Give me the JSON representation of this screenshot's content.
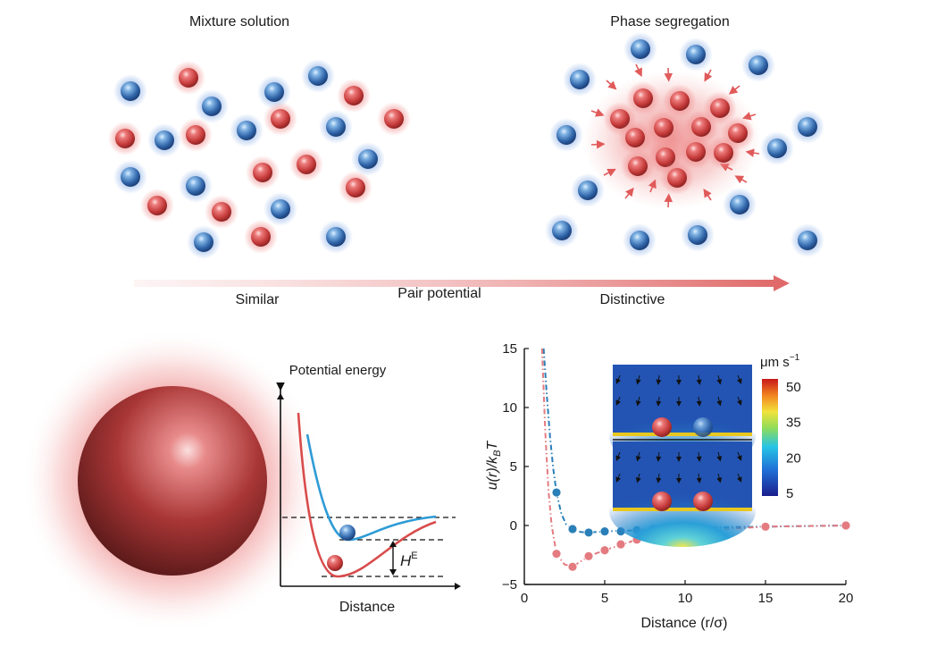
{
  "top": {
    "left_title": "Mixture solution",
    "right_title": "Phase segregation",
    "arrow_left_label": "Similar",
    "arrow_center_label": "Pair potential",
    "arrow_right_label": "Distinctive"
  },
  "energy_diagram": {
    "y_label": "Potential energy",
    "x_label": "Distance",
    "gap_label": "H",
    "gap_label_sup": "E"
  },
  "chart_data": {
    "type": "line",
    "xlabel": "Distance (r/σ)",
    "ylabel_parts": {
      "main": "u(r)/k",
      "sub": "B",
      "tail": "T"
    },
    "xlim": [
      0,
      20
    ],
    "ylim": [
      -5,
      15
    ],
    "xticks": [
      0,
      5,
      10,
      15,
      20
    ],
    "yticks": [
      -5,
      0,
      5,
      10,
      15
    ],
    "series": [
      {
        "color": "#2a7fb8",
        "points": [
          [
            2,
            2.8
          ],
          [
            3,
            -0.3
          ],
          [
            4,
            -0.6
          ],
          [
            5,
            -0.5
          ],
          [
            6,
            -0.5
          ],
          [
            7,
            -0.4
          ],
          [
            8,
            -0.3
          ],
          [
            9,
            -0.3
          ],
          [
            10,
            -0.2
          ],
          [
            15,
            -0.1
          ],
          [
            20,
            0.0
          ]
        ],
        "curve": [
          [
            1.2,
            15
          ],
          [
            1.4,
            11
          ],
          [
            1.6,
            7.5
          ],
          [
            1.8,
            4.8
          ],
          [
            2.0,
            2.8
          ],
          [
            2.3,
            1.0
          ],
          [
            2.6,
            0.1
          ],
          [
            3.0,
            -0.3
          ],
          [
            3.5,
            -0.55
          ],
          [
            4.0,
            -0.6
          ],
          [
            5,
            -0.5
          ],
          [
            7,
            -0.4
          ],
          [
            10,
            -0.2
          ],
          [
            15,
            -0.1
          ],
          [
            20,
            0.0
          ]
        ]
      },
      {
        "color": "#e37b80",
        "points": [
          [
            2,
            -2.4
          ],
          [
            3,
            -3.5
          ],
          [
            4,
            -2.6
          ],
          [
            5,
            -2.1
          ],
          [
            6,
            -1.6
          ],
          [
            7,
            -1.2
          ],
          [
            8,
            -0.9
          ],
          [
            9,
            -0.7
          ],
          [
            10,
            -0.5
          ],
          [
            15,
            -0.1
          ],
          [
            20,
            0.0
          ]
        ],
        "curve": [
          [
            1.1,
            15
          ],
          [
            1.3,
            8
          ],
          [
            1.5,
            3.0
          ],
          [
            1.7,
            0.0
          ],
          [
            2.0,
            -2.4
          ],
          [
            2.5,
            -3.3
          ],
          [
            3.0,
            -3.5
          ],
          [
            4.0,
            -2.6
          ],
          [
            5,
            -2.1
          ],
          [
            7,
            -1.2
          ],
          [
            10,
            -0.5
          ],
          [
            15,
            -0.1
          ],
          [
            20,
            0.0
          ]
        ]
      }
    ],
    "colorbar": {
      "unit_main": "μm s",
      "unit_sup": "−1",
      "ticks": [
        "50",
        "35",
        "20",
        "5"
      ]
    }
  }
}
